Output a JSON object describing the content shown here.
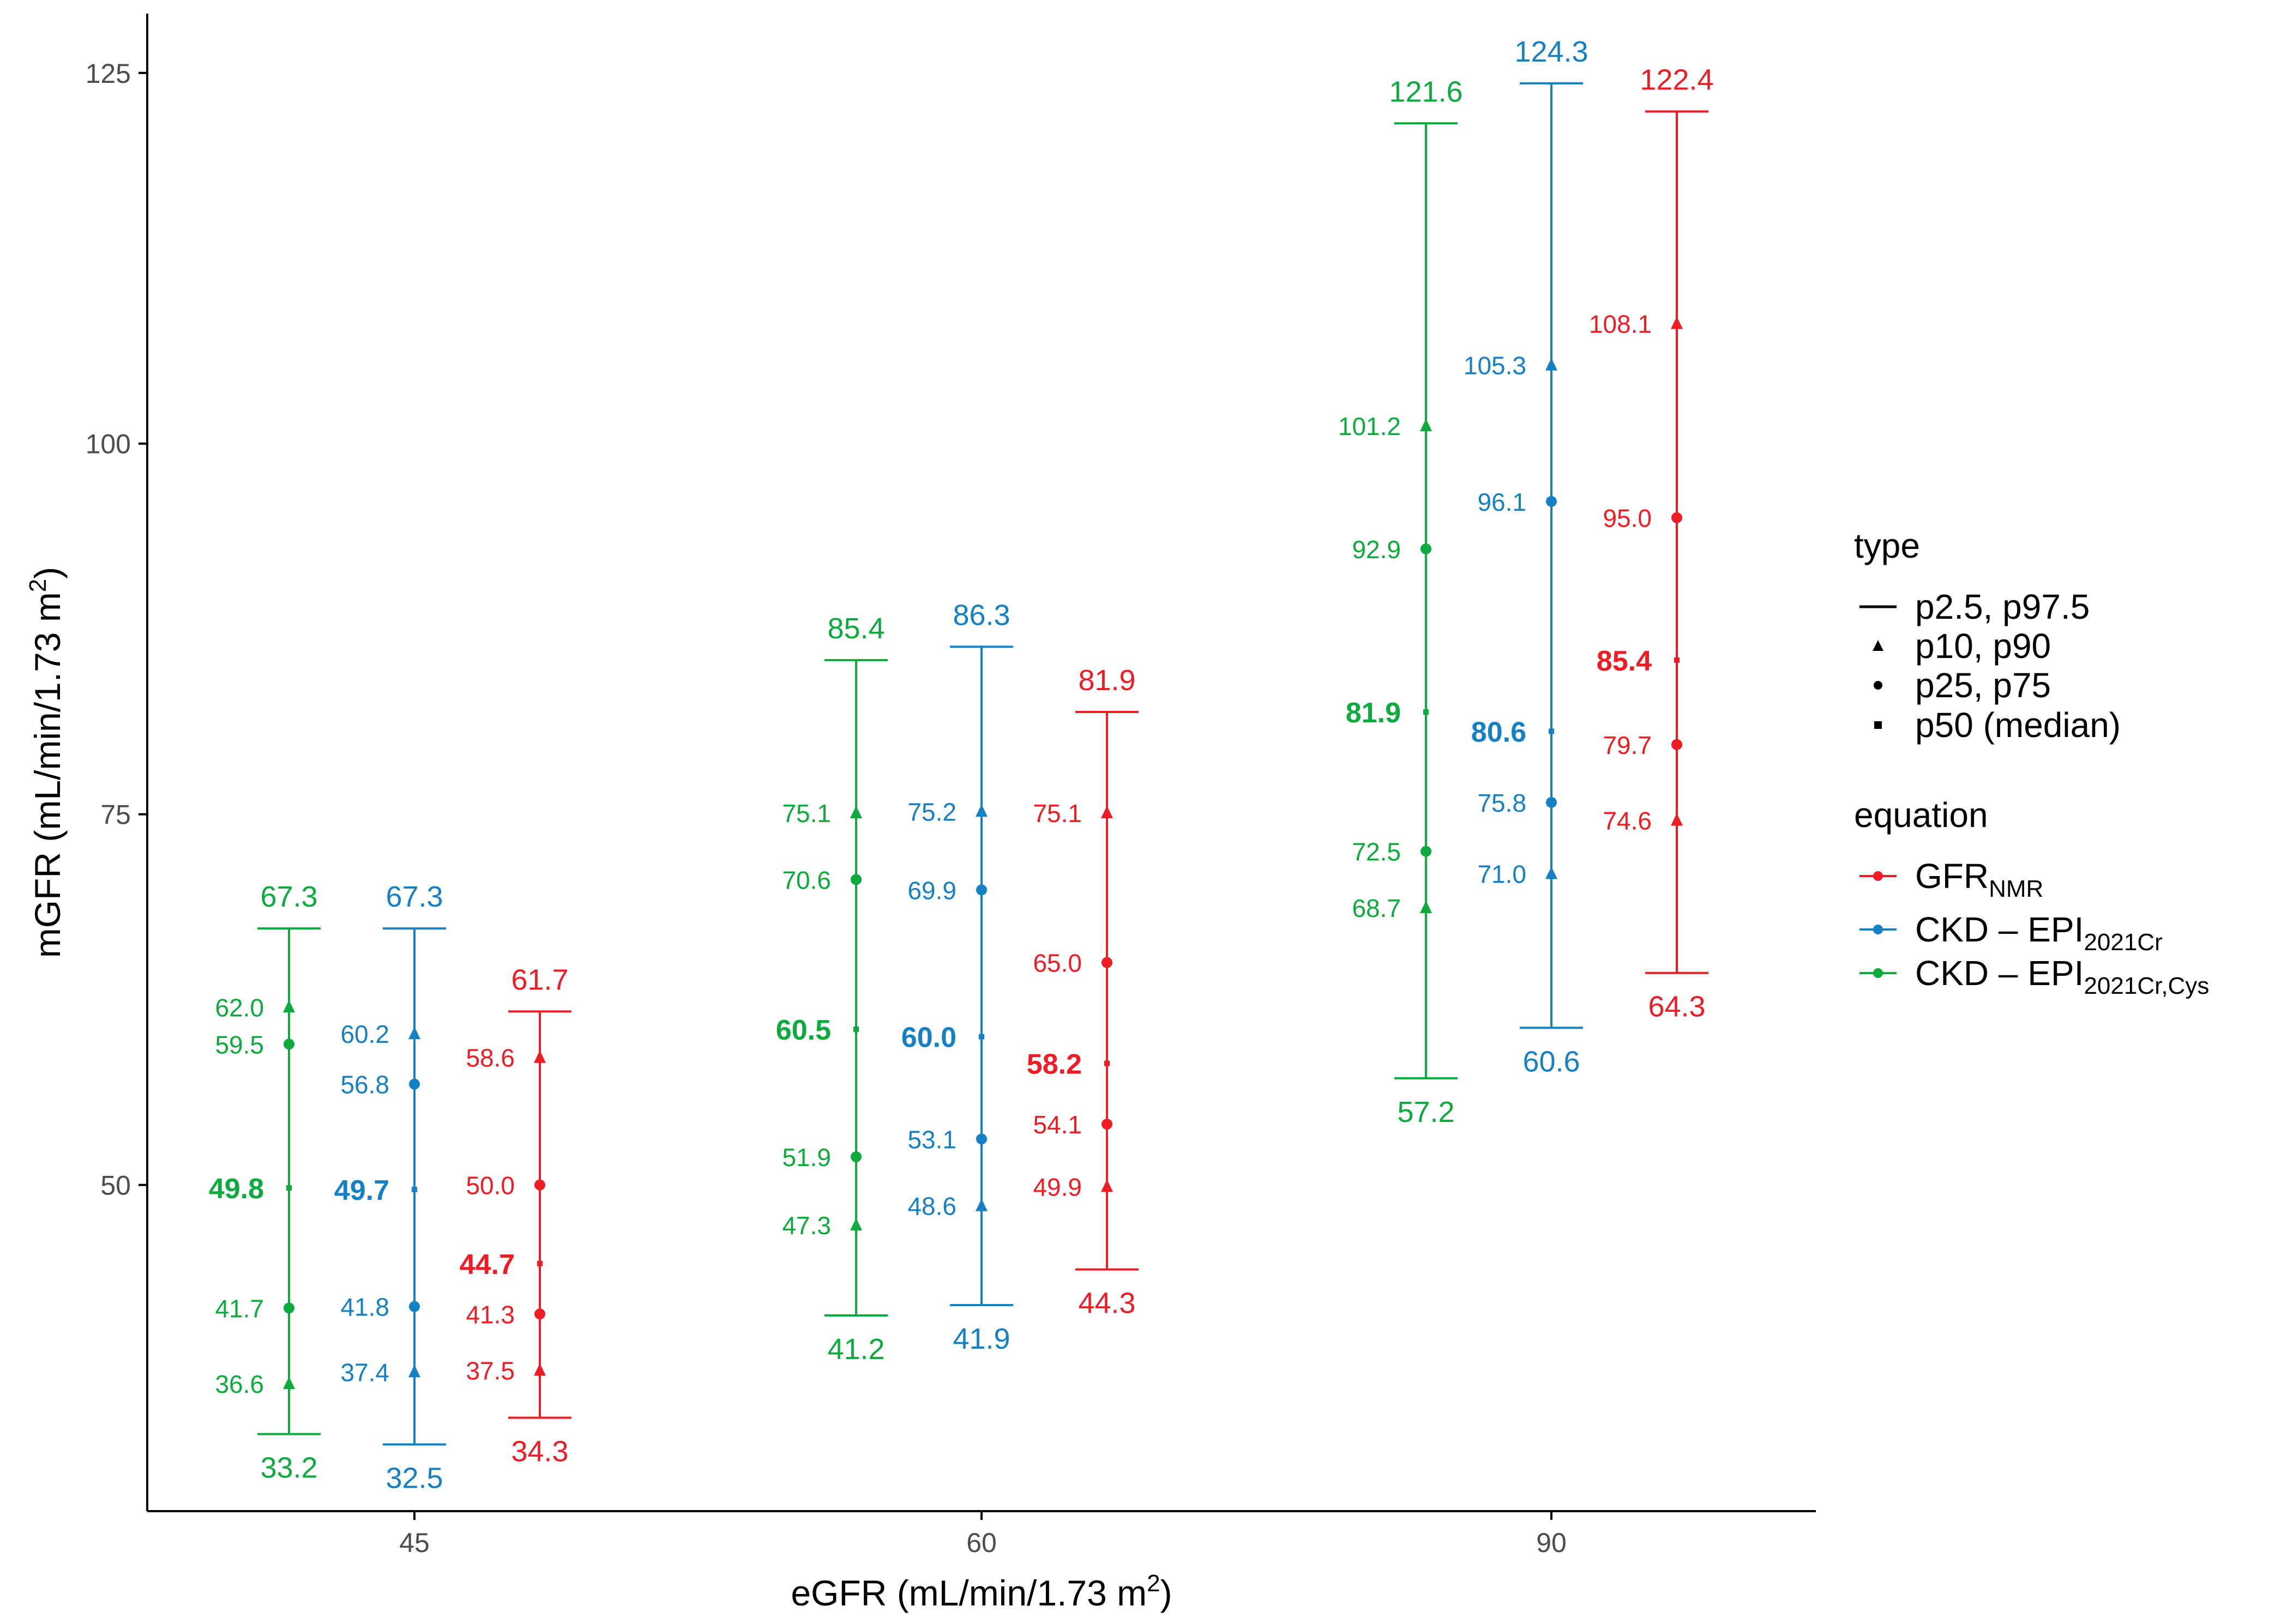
{
  "chart_data": {
    "type": "percentile-range",
    "xlabel": "eGFR (mL/min/1.73 m",
    "xlabel_sup": "2",
    "xlabel_end": ")",
    "ylabel": "mGFR (mL/min/1.73 m",
    "ylabel_sup": "2",
    "ylabel_end": ")",
    "ylim": [
      28,
      129
    ],
    "y_ticks": [
      50,
      75,
      100,
      125
    ],
    "categories": [
      "45",
      "60",
      "90"
    ],
    "legend": {
      "type_title": "type",
      "type_items": [
        {
          "shape": "line",
          "label": "p2.5, p97.5"
        },
        {
          "shape": "triangle",
          "label": "p10, p90"
        },
        {
          "shape": "circle",
          "label": "p25, p75"
        },
        {
          "shape": "square",
          "label": "p50 (median)"
        }
      ],
      "equation_title": "equation",
      "equation_items": [
        {
          "main": "GFR",
          "sub": "NMR",
          "color": "#EE1C25"
        },
        {
          "main": "CKD – EPI",
          "sub": "2021Cr",
          "color": "#1680C4"
        },
        {
          "main": "CKD – EPI",
          "sub": "2021Cr,Cys",
          "color": "#0DAA3D"
        }
      ]
    },
    "series": [
      {
        "name": "CKD-EPI2021Cr,Cys",
        "color": "#0DAA3D",
        "groups": [
          {
            "p2_5": 33.2,
            "p10": 36.6,
            "p25": 41.7,
            "p50": 49.8,
            "p75": 59.5,
            "p90": 62.0,
            "p97_5": 67.3
          },
          {
            "p2_5": 41.2,
            "p10": 47.3,
            "p25": 51.9,
            "p50": 60.5,
            "p75": 70.6,
            "p90": 75.1,
            "p97_5": 85.4
          },
          {
            "p2_5": 57.2,
            "p10": 68.7,
            "p25": 72.5,
            "p50": 81.9,
            "p75": 92.9,
            "p90": 101.2,
            "p97_5": 121.6
          }
        ]
      },
      {
        "name": "CKD-EPI2021Cr",
        "color": "#1680C4",
        "groups": [
          {
            "p2_5": 32.5,
            "p10": 37.4,
            "p25": 41.8,
            "p50": 49.7,
            "p75": 56.8,
            "p90": 60.2,
            "p97_5": 67.3
          },
          {
            "p2_5": 41.9,
            "p10": 48.6,
            "p25": 53.1,
            "p50": 60.0,
            "p75": 69.9,
            "p90": 75.2,
            "p97_5": 86.3
          },
          {
            "p2_5": 60.6,
            "p10": 71.0,
            "p25": 75.8,
            "p50": 80.6,
            "p75": 96.1,
            "p90": 105.3,
            "p97_5": 124.3
          }
        ]
      },
      {
        "name": "GFRNMR",
        "color": "#EE1C25",
        "groups": [
          {
            "p2_5": 34.3,
            "p10": 37.5,
            "p25": 41.3,
            "p50": 44.7,
            "p75": 50.0,
            "p90": 58.6,
            "p97_5": 61.7
          },
          {
            "p2_5": 44.3,
            "p10": 49.9,
            "p25": 54.1,
            "p50": 58.2,
            "p75": 65.0,
            "p90": 75.1,
            "p97_5": 81.9
          },
          {
            "p2_5": 64.3,
            "p10": 74.6,
            "p25": 79.7,
            "p50": 85.4,
            "p75": 95.0,
            "p90": 108.1,
            "p97_5": 122.4
          }
        ]
      }
    ]
  }
}
